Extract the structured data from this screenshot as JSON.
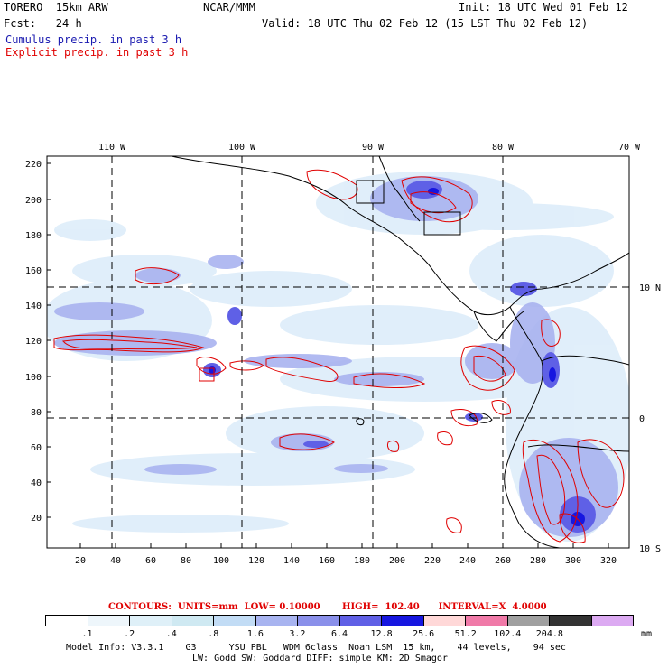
{
  "header": {
    "model": "TORERO  15km ARW",
    "center": "NCAR/MMM",
    "init": "Init: 18 UTC Wed 01 Feb 12",
    "fcst": "Fcst:   24 h",
    "valid": "Valid: 18 UTC Thu 02 Feb 12 (15 LST Thu 02 Feb 12)",
    "cumulus": "Cumulus precip. in past 3 h",
    "explicit": "Explicit precip. in past 3 h"
  },
  "map": {
    "top_labels": [
      "110 W",
      "100 W",
      "90 W",
      "80 W",
      "70 W"
    ],
    "right_labels": [
      "10 N",
      "0",
      "10 S"
    ],
    "y_ticks": [
      "220",
      "200",
      "180",
      "160",
      "140",
      "120",
      "100",
      "80",
      "60",
      "40",
      "20"
    ],
    "x_ticks": [
      "20",
      "40",
      "60",
      "80",
      "100",
      "120",
      "140",
      "160",
      "180",
      "200",
      "220",
      "240",
      "260",
      "280",
      "300",
      "320"
    ]
  },
  "legend": {
    "contours": "CONTOURS:  UNITS=mm  LOW= 0.10000       HIGH=  102.40      INTERVAL=X  4.0000",
    "colors": [
      "#ffffff",
      "#eef6fb",
      "#dff0f8",
      "#cfe9f2",
      "#c2dcf5",
      "#a8b4f0",
      "#8a90ea",
      "#6060e6",
      "#1616e0",
      "#ffd8d8",
      "#f07aa8",
      "#a0a0a0",
      "#333333",
      "#dcaaf2"
    ],
    "ticks": [
      ".1",
      ".2",
      ".4",
      ".8",
      "1.6",
      "3.2",
      "6.4",
      "12.8",
      "25.6",
      "51.2",
      "102.4",
      "204.8"
    ],
    "unit": "mm"
  },
  "model_info": {
    "line1": "Model Info: V3.3.1    G3      YSU PBL   WDM 6class  Noah LSM  15 km,    44 levels,    94 sec",
    "line2": "LW: Godd SW: Goddard DIFF: simple KM: 2D Smagor"
  }
}
